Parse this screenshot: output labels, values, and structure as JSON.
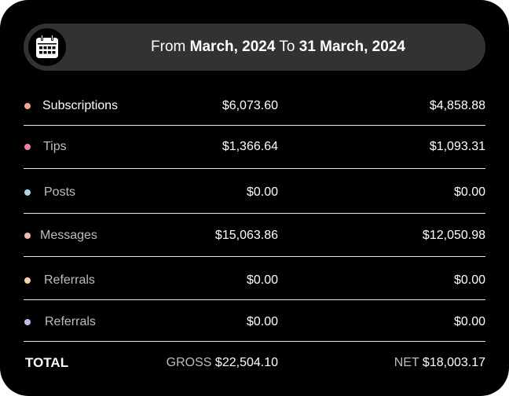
{
  "date_range": {
    "prefix": "From",
    "start": "March, 2024",
    "middle": "To",
    "end": "31 March, 2024"
  },
  "calendar_icon": "calendar-icon",
  "rows": [
    {
      "label": "Subscriptions",
      "gross": "$6,073.60",
      "net": "$4,858.88",
      "dot_color": "#f4a58a",
      "label_color": "#ffffff"
    },
    {
      "label": "Tips",
      "gross": "$1,366.64",
      "net": "$1,093.31",
      "dot_color": "#f47ab0",
      "label_color": "#bdbdbd"
    },
    {
      "label": "Posts",
      "gross": "$0.00",
      "net": "$0.00",
      "dot_color": "#a8d8ea",
      "label_color": "#bdbdbd"
    },
    {
      "label": "Messages",
      "gross": "$15,063.86",
      "net": "$12,050.98",
      "dot_color": "#f5b7a8",
      "label_color": "#bdbdbd"
    },
    {
      "label": "Referrals",
      "gross": "$0.00",
      "net": "$0.00",
      "dot_color": "#f9d2a8",
      "label_color": "#bdbdbd"
    },
    {
      "label": "Referrals",
      "gross": "$0.00",
      "net": "$0.00",
      "dot_color": "#c9b8e8",
      "label_color": "#bdbdbd"
    }
  ],
  "total": {
    "label": "TOTAL",
    "gross_prefix": "GROSS",
    "gross_value": "$22,504.10",
    "net_prefix": "NET",
    "net_value": "$18,003.17"
  }
}
